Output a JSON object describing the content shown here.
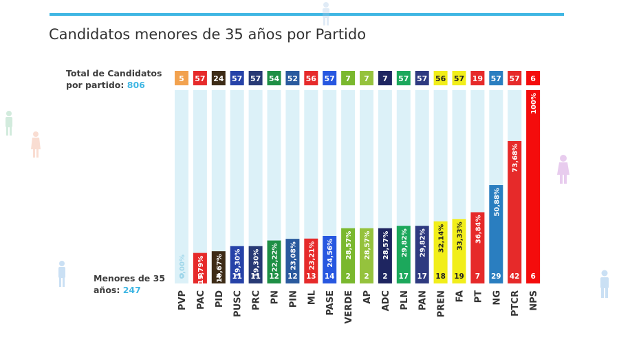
{
  "title": "Candidatos menores de 35 años por Partido",
  "total_label": {
    "line1": "Total de Candidatos",
    "line2_prefix": "por partido: ",
    "value": "806"
  },
  "under35_label": {
    "line1": "Menores de 35",
    "line2_prefix": "años: ",
    "value": "247"
  },
  "colors": {
    "accent": "#3fb6e3",
    "track": "#dcf1f8",
    "text_dark": "#333333"
  },
  "chart_data": {
    "type": "bar",
    "categories": [
      "PVP",
      "PAC",
      "PID",
      "PUSC",
      "PRC",
      "PN",
      "PIN",
      "ML",
      "PASE",
      "VERDE",
      "AP",
      "ADC",
      "PLN",
      "PAN",
      "PREN",
      "FA",
      "PT",
      "NG",
      "PTCR",
      "NPS"
    ],
    "totals": [
      5,
      57,
      24,
      57,
      57,
      54,
      52,
      56,
      57,
      7,
      7,
      7,
      57,
      57,
      56,
      57,
      19,
      57,
      57,
      6
    ],
    "under35": [
      0,
      9,
      4,
      11,
      11,
      12,
      12,
      13,
      14,
      2,
      2,
      2,
      17,
      17,
      18,
      19,
      7,
      29,
      42,
      6
    ],
    "percent_labels": [
      "0,00%",
      "15,79%",
      "16,67%",
      "19,30%",
      "19,30%",
      "22,22%",
      "23,08%",
      "23,21%",
      "24,56%",
      "28,57%",
      "28,57%",
      "28,57%",
      "29,82%",
      "29,82%",
      "32,14%",
      "33,33%",
      "36,84%",
      "50,88%",
      "73,68%",
      "100%"
    ],
    "percent_values": [
      0,
      15.79,
      16.67,
      19.3,
      19.3,
      22.22,
      23.08,
      23.21,
      24.56,
      28.57,
      28.57,
      28.57,
      29.82,
      29.82,
      32.14,
      33.33,
      36.84,
      50.88,
      73.68,
      100
    ],
    "colors": [
      "#f2a24f",
      "#e62a2a",
      "#3d2b16",
      "#2642a8",
      "#283a75",
      "#1e8f45",
      "#2a5a9e",
      "#e62a2a",
      "#2757e0",
      "#7ab82e",
      "#95c23d",
      "#1e2560",
      "#1ca85c",
      "#2e3a80",
      "#f1ee1a",
      "#f1ee1a",
      "#e62a2a",
      "#2a7ec0",
      "#e62a2a",
      "#f40c0c"
    ],
    "ylim": [
      0,
      100
    ]
  }
}
